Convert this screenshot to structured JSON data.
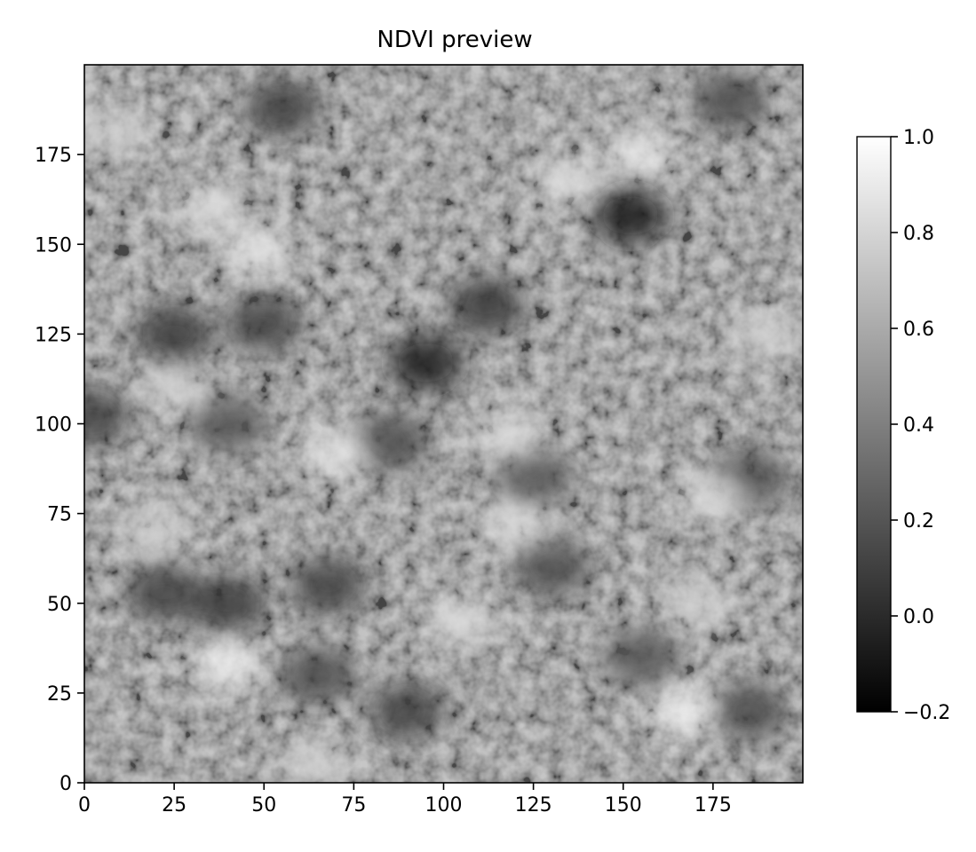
{
  "chart_data": {
    "type": "heatmap",
    "title": "NDVI preview",
    "xlabel": "",
    "ylabel": "",
    "grid": false,
    "colormap": "gray",
    "colormap_colors": [
      "#000000",
      "#ffffff"
    ],
    "xlim": [
      0,
      200
    ],
    "ylim": [
      0,
      200
    ],
    "x_ticks": [
      0,
      25,
      50,
      75,
      100,
      125,
      150,
      175
    ],
    "y_ticks": [
      0,
      25,
      50,
      75,
      100,
      125,
      150,
      175
    ],
    "x_tick_labels": [
      "0",
      "25",
      "50",
      "75",
      "100",
      "125",
      "150",
      "175"
    ],
    "y_tick_labels": [
      "0",
      "25",
      "50",
      "75",
      "100",
      "125",
      "150",
      "175"
    ],
    "colorbar": {
      "range": [
        -0.2,
        1.0
      ],
      "ticks": [
        -0.2,
        0.0,
        0.2,
        0.4,
        0.6,
        0.8,
        1.0
      ],
      "tick_labels": [
        "−0.2",
        "0.0",
        "0.2",
        "0.4",
        "0.6",
        "0.8",
        "1.0"
      ]
    },
    "image_size": [
      200,
      200
    ],
    "value_range": [
      -0.2,
      1.0
    ],
    "dark_regions": [
      {
        "x": 152,
        "y": 158,
        "value": -0.1
      },
      {
        "x": 95,
        "y": 117,
        "value": -0.1
      },
      {
        "x": 112,
        "y": 133,
        "value": 0.05
      },
      {
        "x": 25,
        "y": 125,
        "value": 0.05
      },
      {
        "x": 50,
        "y": 128,
        "value": 0.1
      },
      {
        "x": 40,
        "y": 50,
        "value": 0.05
      },
      {
        "x": 22,
        "y": 53,
        "value": 0.1
      },
      {
        "x": 68,
        "y": 55,
        "value": 0.1
      },
      {
        "x": 55,
        "y": 188,
        "value": 0.1
      },
      {
        "x": 180,
        "y": 190,
        "value": 0.15
      },
      {
        "x": 90,
        "y": 20,
        "value": 0.1
      },
      {
        "x": 185,
        "y": 20,
        "value": 0.15
      },
      {
        "x": 185,
        "y": 85,
        "value": 0.15
      },
      {
        "x": 130,
        "y": 60,
        "value": 0.15
      },
      {
        "x": 85,
        "y": 95,
        "value": 0.15
      },
      {
        "x": 2,
        "y": 102,
        "value": 0.1
      },
      {
        "x": 65,
        "y": 30,
        "value": 0.15
      },
      {
        "x": 155,
        "y": 35,
        "value": 0.2
      },
      {
        "x": 125,
        "y": 85,
        "value": 0.2
      },
      {
        "x": 40,
        "y": 100,
        "value": 0.2
      }
    ],
    "bright_regions": [
      {
        "x": 40,
        "y": 33,
        "value": 0.95
      },
      {
        "x": 167,
        "y": 20,
        "value": 0.95
      },
      {
        "x": 155,
        "y": 175,
        "value": 0.9
      },
      {
        "x": 48,
        "y": 148,
        "value": 0.9
      },
      {
        "x": 35,
        "y": 160,
        "value": 0.85
      },
      {
        "x": 70,
        "y": 92,
        "value": 0.9
      },
      {
        "x": 120,
        "y": 72,
        "value": 0.85
      },
      {
        "x": 118,
        "y": 97,
        "value": 0.85
      },
      {
        "x": 175,
        "y": 80,
        "value": 0.85
      },
      {
        "x": 8,
        "y": 182,
        "value": 0.8
      },
      {
        "x": 135,
        "y": 168,
        "value": 0.85
      },
      {
        "x": 190,
        "y": 125,
        "value": 0.8
      },
      {
        "x": 25,
        "y": 110,
        "value": 0.8
      },
      {
        "x": 105,
        "y": 45,
        "value": 0.85
      },
      {
        "x": 20,
        "y": 70,
        "value": 0.8
      },
      {
        "x": 170,
        "y": 50,
        "value": 0.8
      },
      {
        "x": 65,
        "y": 5,
        "value": 0.8
      }
    ]
  }
}
